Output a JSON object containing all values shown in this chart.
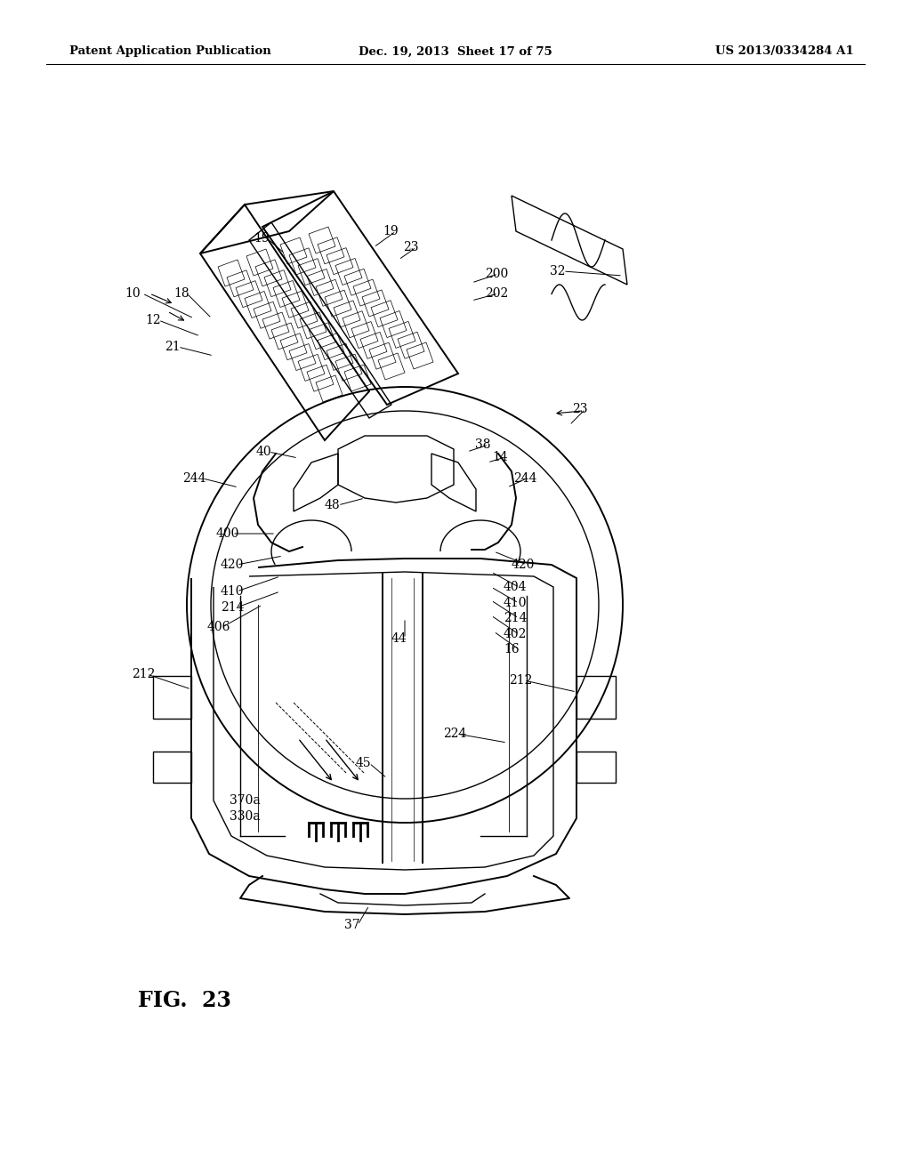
{
  "background_color": "#ffffff",
  "header_left": "Patent Application Publication",
  "header_center": "Dec. 19, 2013  Sheet 17 of 75",
  "header_right": "US 2013/0334284 A1",
  "figure_label": "FIG.  23"
}
